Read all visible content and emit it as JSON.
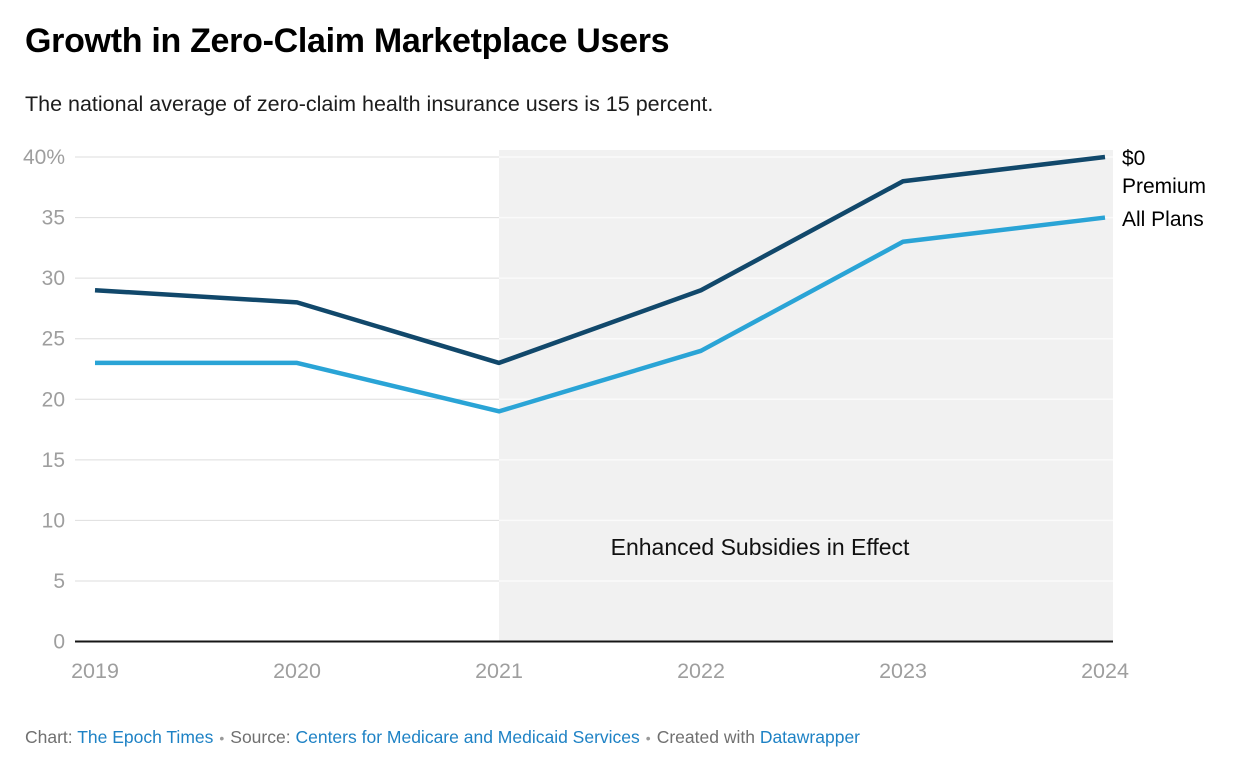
{
  "header": {
    "title": "Growth in Zero-Claim Marketplace Users",
    "subtitle": "The national average of zero-claim health insurance users is 15 percent."
  },
  "chart_data": {
    "type": "line",
    "title": "Growth in Zero-Claim Marketplace Users",
    "subtitle": "The national average of zero-claim health insurance users is 15 percent.",
    "x": [
      "2019",
      "2020",
      "2021",
      "2022",
      "2023",
      "2024"
    ],
    "series": [
      {
        "name": "$0 Premium",
        "color": "#11486b",
        "values": [
          29,
          28,
          23,
          29,
          38,
          40
        ]
      },
      {
        "name": "All Plans",
        "color": "#2aa4d6",
        "values": [
          23,
          23,
          19,
          24,
          33,
          35
        ]
      }
    ],
    "ylim": [
      0,
      40
    ],
    "yticks": [
      {
        "value": 40,
        "label": "40%"
      },
      {
        "value": 35,
        "label": "35"
      },
      {
        "value": 30,
        "label": "30"
      },
      {
        "value": 25,
        "label": "25"
      },
      {
        "value": 20,
        "label": "20"
      },
      {
        "value": 15,
        "label": "15"
      },
      {
        "value": 10,
        "label": "10"
      },
      {
        "value": 5,
        "label": "5"
      },
      {
        "value": 0,
        "label": "0"
      }
    ],
    "grid": true,
    "legend_position": "right of line ends",
    "highlight_region": {
      "from": "2021",
      "to": "end",
      "color": "#f1f1f1",
      "label": "Enhanced Subsidies in Effect"
    },
    "colors": {
      "axis_line": "#161616",
      "gridline": "#dedede",
      "gridline_on_band": "#fafafa",
      "tick_label": "#9e9e9e"
    }
  },
  "footer": {
    "chart_prefix": "Chart: ",
    "chart_credit": "The Epoch Times",
    "separator": "•",
    "source_prefix": "Source: ",
    "source_name": "Centers for Medicare and Medicaid Services",
    "created_prefix": "Created with ",
    "tool_name": "Datawrapper"
  }
}
